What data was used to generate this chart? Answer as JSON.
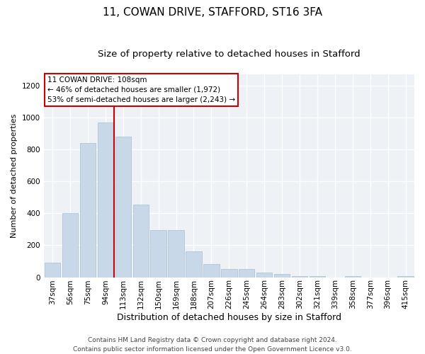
{
  "title_line1": "11, COWAN DRIVE, STAFFORD, ST16 3FA",
  "title_line2": "Size of property relative to detached houses in Stafford",
  "xlabel": "Distribution of detached houses by size in Stafford",
  "ylabel": "Number of detached properties",
  "categories": [
    "37sqm",
    "56sqm",
    "75sqm",
    "94sqm",
    "113sqm",
    "132sqm",
    "150sqm",
    "169sqm",
    "188sqm",
    "207sqm",
    "226sqm",
    "245sqm",
    "264sqm",
    "283sqm",
    "302sqm",
    "321sqm",
    "339sqm",
    "358sqm",
    "377sqm",
    "396sqm",
    "415sqm"
  ],
  "values": [
    90,
    400,
    840,
    970,
    880,
    455,
    295,
    295,
    160,
    80,
    50,
    50,
    28,
    18,
    8,
    5,
    0,
    8,
    0,
    0,
    8
  ],
  "bar_color": "#c8d8e8",
  "bar_edgecolor": "#a8bfd0",
  "vline_x_index": 4,
  "vline_color": "#cc0000",
  "annotation_text": "11 COWAN DRIVE: 108sqm\n← 46% of detached houses are smaller (1,972)\n53% of semi-detached houses are larger (2,243) →",
  "annotation_box_edgecolor": "#cc0000",
  "ylim": [
    0,
    1270
  ],
  "yticks": [
    0,
    200,
    400,
    600,
    800,
    1000,
    1200
  ],
  "footer_line1": "Contains HM Land Registry data © Crown copyright and database right 2024.",
  "footer_line2": "Contains public sector information licensed under the Open Government Licence v3.0.",
  "plot_bg_color": "#eef2f6",
  "fig_bg_color": "#ffffff",
  "grid_color": "#ffffff",
  "title1_fontsize": 11,
  "title2_fontsize": 9.5,
  "xlabel_fontsize": 9,
  "ylabel_fontsize": 8,
  "tick_fontsize": 7.5,
  "annotation_fontsize": 7.5,
  "footer_fontsize": 6.5
}
